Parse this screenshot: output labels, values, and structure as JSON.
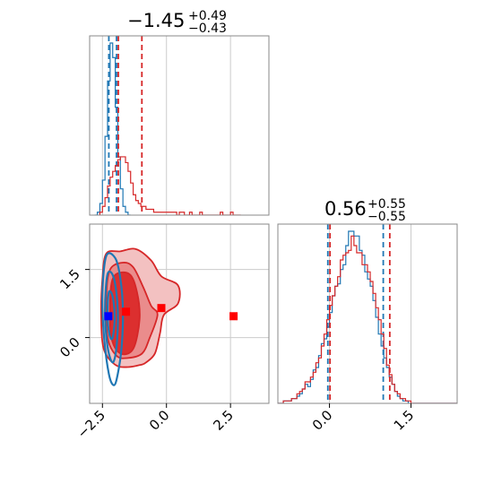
{
  "colors": {
    "red": "#d62728",
    "blue": "#1f77b4",
    "red_fill_light": "#f3c1c1",
    "red_fill_mid": "#ea8c8c",
    "red_fill_dark": "#dc2f2f",
    "grid": "#cccccc",
    "marker_red": "#ff0000",
    "marker_blue": "#0000ff"
  },
  "titles": {
    "param1": {
      "value": "−1.45",
      "sup": "+0.49",
      "sub": "−0.43"
    },
    "param2": {
      "value": "0.56",
      "sup": "+0.55",
      "sub": "−0.55"
    }
  },
  "chart_data": [
    {
      "type": "histogram",
      "panel": "param1-marginal",
      "xlim": [
        -3.0,
        4.0
      ],
      "bin_width": 0.1,
      "grid": true,
      "series": [
        {
          "color": "#1f77b4",
          "bins_start": -2.8,
          "counts": [
            0,
            1,
            4,
            12,
            27,
            46,
            59,
            54,
            37,
            20,
            9,
            3,
            1,
            0
          ],
          "quantiles": [
            -2.25,
            -1.95
          ]
        },
        {
          "color": "#d62728",
          "bins_start": -2.6,
          "counts": [
            1,
            3,
            6,
            10,
            13,
            15,
            17,
            19,
            20,
            20,
            18,
            15,
            11,
            7,
            5,
            4,
            3,
            3,
            2,
            2,
            2,
            1,
            1,
            1,
            1,
            1,
            1,
            1,
            1,
            1,
            0,
            1,
            1,
            0,
            0,
            1,
            0,
            0,
            0,
            1,
            0,
            0,
            0,
            0,
            0,
            0,
            0,
            1,
            0,
            0,
            0,
            1,
            0,
            0,
            0
          ],
          "quantiles": [
            -1.88,
            -0.96
          ]
        }
      ]
    },
    {
      "type": "histogram",
      "panel": "param2-marginal",
      "xlim": [
        -0.95,
        2.35
      ],
      "bin_width": 0.05,
      "grid": true,
      "series": [
        {
          "color": "#1f77b4",
          "bins_start": -0.95,
          "counts": [
            0,
            0,
            1,
            1,
            1,
            2,
            2,
            3,
            4,
            6,
            8,
            7,
            10,
            14,
            15,
            20,
            25,
            27,
            32,
            38,
            45,
            49,
            50,
            56,
            58,
            66,
            72,
            72,
            70,
            70,
            64,
            62,
            55,
            52,
            49,
            43,
            36,
            29,
            24,
            19,
            15,
            11,
            8,
            5,
            3,
            2,
            1,
            1,
            0,
            0,
            0,
            0,
            0,
            0,
            0,
            0,
            0,
            0,
            0,
            0,
            0,
            0,
            0,
            0,
            0,
            0
          ],
          "quantiles": [
            -0.03,
            0.99
          ]
        },
        {
          "color": "#d62728",
          "bins_start": -0.95,
          "counts": [
            0,
            0,
            1,
            1,
            1,
            2,
            2,
            4,
            5,
            6,
            9,
            9,
            11,
            13,
            17,
            19,
            24,
            29,
            35,
            41,
            45,
            49,
            53,
            60,
            62,
            63,
            64,
            70,
            66,
            63,
            63,
            58,
            58,
            55,
            51,
            46,
            40,
            35,
            29,
            23,
            16,
            12,
            8,
            5,
            4,
            2,
            2,
            1,
            1,
            0,
            0,
            0,
            0,
            0,
            0,
            0,
            0,
            0,
            0,
            0,
            0,
            0,
            0,
            0,
            0,
            0
          ],
          "quantiles": [
            0.01,
            1.11
          ]
        }
      ]
    },
    {
      "type": "contour",
      "panel": "joint",
      "xlim": [
        -3.0,
        4.0
      ],
      "ylim": [
        -1.45,
        2.5
      ],
      "grid": true,
      "x_ticks": [
        "−2.5",
        "0.0",
        "2.5"
      ],
      "x_tick_values": [
        -2.5,
        0.0,
        2.5
      ],
      "y_ticks": [
        "0.0",
        "1.5"
      ],
      "y_tick_values": [
        0.0,
        1.5
      ],
      "series": [
        {
          "color": "#d62728",
          "filled": true,
          "contours": [
            [
              [
                -2.35,
                1.85
              ],
              [
                -1.8,
                1.9
              ],
              [
                -1.2,
                1.95
              ],
              [
                -0.6,
                1.7
              ],
              [
                -0.2,
                1.35
              ],
              [
                0.45,
                1.15
              ],
              [
                0.45,
                0.75
              ],
              [
                -0.1,
                0.5
              ],
              [
                -0.25,
                0.1
              ],
              [
                -0.45,
                -0.35
              ],
              [
                -0.8,
                -0.55
              ],
              [
                -1.0,
                -0.6
              ],
              [
                -1.5,
                -0.65
              ],
              [
                -2.0,
                -0.6
              ],
              [
                -2.45,
                -0.25
              ],
              [
                -2.55,
                0.5
              ],
              [
                -2.5,
                1.3
              ]
            ],
            [
              [
                -2.2,
                1.5
              ],
              [
                -1.7,
                1.65
              ],
              [
                -1.3,
                1.55
              ],
              [
                -0.9,
                1.1
              ],
              [
                -0.6,
                0.7
              ],
              [
                -0.35,
                0.5
              ],
              [
                -0.65,
                0.0
              ],
              [
                -0.95,
                -0.35
              ],
              [
                -1.5,
                -0.45
              ],
              [
                -1.95,
                -0.4
              ],
              [
                -2.3,
                0.0
              ],
              [
                -2.35,
                0.9
              ]
            ],
            [
              [
                -2.05,
                1.35
              ],
              [
                -1.45,
                1.4
              ],
              [
                -1.15,
                1.0
              ],
              [
                -1.05,
                0.4
              ],
              [
                -1.3,
                -0.25
              ],
              [
                -1.8,
                -0.35
              ],
              [
                -2.15,
                0.0
              ],
              [
                -2.2,
                0.8
              ]
            ]
          ],
          "markers": [
            [
              -1.58,
              0.57
            ],
            [
              -0.2,
              0.65
            ],
            [
              2.62,
              0.47
            ]
          ]
        },
        {
          "color": "#1f77b4",
          "filled": false,
          "contours": [
            [
              [
                -2.35,
                1.8
              ],
              [
                -2.0,
                1.75
              ],
              [
                -1.8,
                1.3
              ],
              [
                -1.7,
                0.6
              ],
              [
                -1.75,
                -0.2
              ],
              [
                -1.9,
                -0.8
              ],
              [
                -2.05,
                -1.05
              ],
              [
                -2.25,
                -0.8
              ],
              [
                -2.45,
                0.1
              ],
              [
                -2.5,
                1.0
              ]
            ],
            [
              [
                -2.3,
                1.4
              ],
              [
                -2.05,
                1.3
              ],
              [
                -1.9,
                0.6
              ],
              [
                -1.95,
                -0.2
              ],
              [
                -2.1,
                -0.55
              ],
              [
                -2.3,
                -0.2
              ],
              [
                -2.4,
                0.6
              ]
            ],
            [
              [
                -2.25,
                1.0
              ],
              [
                -2.1,
                0.9
              ],
              [
                -2.02,
                0.45
              ],
              [
                -2.1,
                0.0
              ],
              [
                -2.22,
                0.05
              ],
              [
                -2.3,
                0.5
              ]
            ]
          ],
          "markers": [
            [
              -2.27,
              0.47
            ]
          ]
        }
      ]
    }
  ]
}
